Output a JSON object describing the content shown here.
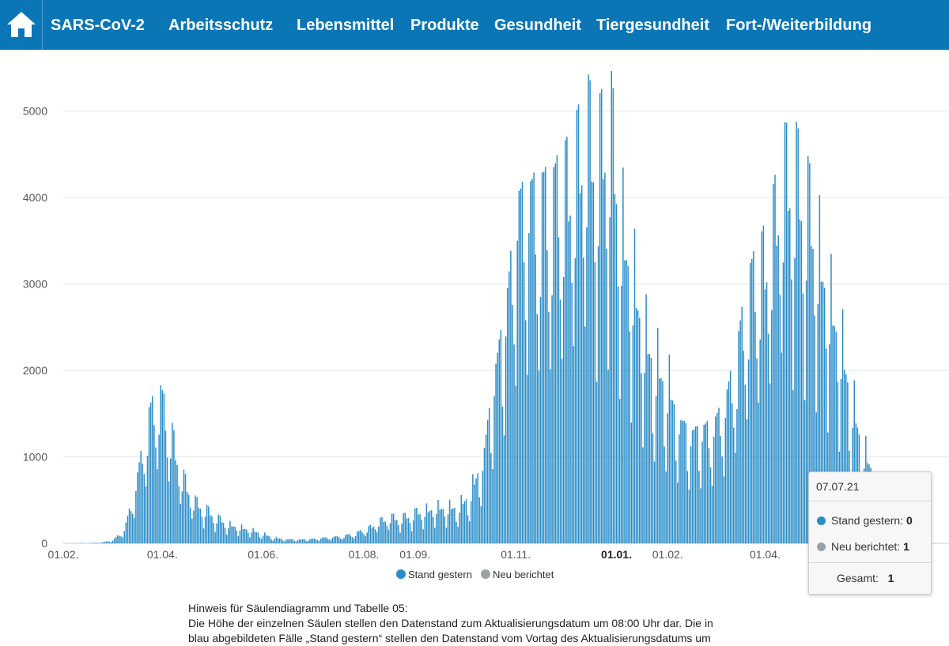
{
  "nav": {
    "home_icon": "home-icon",
    "items": [
      "SARS-CoV-2",
      "Arbeitsschutz",
      "Lebensmittel",
      "Produkte",
      "Gesundheit",
      "Tiergesundheit",
      "Fort-/Weiterbildung"
    ]
  },
  "colors": {
    "nav_bg": "#0a76b5",
    "series_stand": "#2a8dc8",
    "series_neu": "#9aa1a6",
    "grid": "#e6e6e6"
  },
  "chart_data": {
    "type": "bar",
    "x_start": "2020-02-01",
    "x_end": "2021-07-07",
    "ylim": [
      0,
      5600
    ],
    "yticks": [
      0,
      1000,
      2000,
      3000,
      4000,
      5000
    ],
    "xtick_labels": [
      {
        "date": "2020-02-01",
        "label": "01.02.",
        "bold": false
      },
      {
        "date": "2020-04-01",
        "label": "01.04.",
        "bold": false
      },
      {
        "date": "2020-06-01",
        "label": "01.06.",
        "bold": false
      },
      {
        "date": "2020-08-01",
        "label": "01.08.",
        "bold": false
      },
      {
        "date": "2020-09-01",
        "label": "01.09.",
        "bold": false
      },
      {
        "date": "2020-11-01",
        "label": "01.11.",
        "bold": false
      },
      {
        "date": "2021-01-01",
        "label": "01.01.",
        "bold": true
      },
      {
        "date": "2021-02-01",
        "label": "01.02.",
        "bold": false
      },
      {
        "date": "2021-04-01",
        "label": "01.04.",
        "bold": false
      }
    ],
    "weekly_profile": [
      0.72,
      1.0,
      0.93,
      0.88,
      0.82,
      0.6,
      0.42
    ],
    "weekly_trend": [
      {
        "week_start": "2020-02-03",
        "value": 2
      },
      {
        "week_start": "2020-02-10",
        "value": 3
      },
      {
        "week_start": "2020-02-17",
        "value": 5
      },
      {
        "week_start": "2020-02-24",
        "value": 10
      },
      {
        "week_start": "2020-03-02",
        "value": 40
      },
      {
        "week_start": "2020-03-09",
        "value": 180
      },
      {
        "week_start": "2020-03-16",
        "value": 750
      },
      {
        "week_start": "2020-03-23",
        "value": 1600
      },
      {
        "week_start": "2020-03-30",
        "value": 1950
      },
      {
        "week_start": "2020-04-06",
        "value": 1500
      },
      {
        "week_start": "2020-04-13",
        "value": 900
      },
      {
        "week_start": "2020-04-20",
        "value": 560
      },
      {
        "week_start": "2020-04-27",
        "value": 450
      },
      {
        "week_start": "2020-05-04",
        "value": 330
      },
      {
        "week_start": "2020-05-11",
        "value": 250
      },
      {
        "week_start": "2020-05-18",
        "value": 210
      },
      {
        "week_start": "2020-05-25",
        "value": 170
      },
      {
        "week_start": "2020-06-01",
        "value": 120
      },
      {
        "week_start": "2020-06-08",
        "value": 70
      },
      {
        "week_start": "2020-06-15",
        "value": 55
      },
      {
        "week_start": "2020-06-22",
        "value": 50
      },
      {
        "week_start": "2020-06-29",
        "value": 55
      },
      {
        "week_start": "2020-07-06",
        "value": 70
      },
      {
        "week_start": "2020-07-13",
        "value": 80
      },
      {
        "week_start": "2020-07-20",
        "value": 100
      },
      {
        "week_start": "2020-07-27",
        "value": 130
      },
      {
        "week_start": "2020-08-03",
        "value": 190
      },
      {
        "week_start": "2020-08-10",
        "value": 290
      },
      {
        "week_start": "2020-08-17",
        "value": 340
      },
      {
        "week_start": "2020-08-24",
        "value": 330
      },
      {
        "week_start": "2020-08-31",
        "value": 380
      },
      {
        "week_start": "2020-09-07",
        "value": 430
      },
      {
        "week_start": "2020-09-14",
        "value": 470
      },
      {
        "week_start": "2020-09-21",
        "value": 460
      },
      {
        "week_start": "2020-09-28",
        "value": 480
      },
      {
        "week_start": "2020-10-05",
        "value": 650
      },
      {
        "week_start": "2020-10-12",
        "value": 1100
      },
      {
        "week_start": "2020-10-19",
        "value": 2200
      },
      {
        "week_start": "2020-10-26",
        "value": 3050
      },
      {
        "week_start": "2020-11-02",
        "value": 4400
      },
      {
        "week_start": "2020-11-09",
        "value": 4450
      },
      {
        "week_start": "2020-11-16",
        "value": 4500
      },
      {
        "week_start": "2020-11-23",
        "value": 4450
      },
      {
        "week_start": "2020-11-30",
        "value": 4700
      },
      {
        "week_start": "2020-12-07",
        "value": 4950
      },
      {
        "week_start": "2020-12-14",
        "value": 5400
      },
      {
        "week_start": "2020-12-21",
        "value": 5000
      },
      {
        "week_start": "2020-12-28",
        "value": 5400
      },
      {
        "week_start": "2021-01-04",
        "value": 4200
      },
      {
        "week_start": "2021-01-11",
        "value": 3500
      },
      {
        "week_start": "2021-01-18",
        "value": 2700
      },
      {
        "week_start": "2021-01-25",
        "value": 2300
      },
      {
        "week_start": "2021-02-01",
        "value": 2000
      },
      {
        "week_start": "2021-02-08",
        "value": 1650
      },
      {
        "week_start": "2021-02-15",
        "value": 1450
      },
      {
        "week_start": "2021-02-22",
        "value": 1500
      },
      {
        "week_start": "2021-03-01",
        "value": 1550
      },
      {
        "week_start": "2021-03-08",
        "value": 1800
      },
      {
        "week_start": "2021-03-15",
        "value": 2450
      },
      {
        "week_start": "2021-03-22",
        "value": 3300
      },
      {
        "week_start": "2021-03-29",
        "value": 3600
      },
      {
        "week_start": "2021-04-05",
        "value": 4050
      },
      {
        "week_start": "2021-04-12",
        "value": 4800
      },
      {
        "week_start": "2021-04-19",
        "value": 4800
      },
      {
        "week_start": "2021-04-26",
        "value": 4350
      },
      {
        "week_start": "2021-05-03",
        "value": 3900
      },
      {
        "week_start": "2021-05-10",
        "value": 3200
      },
      {
        "week_start": "2021-05-17",
        "value": 2600
      },
      {
        "week_start": "2021-05-24",
        "value": 1800
      },
      {
        "week_start": "2021-05-31",
        "value": 1150
      },
      {
        "week_start": "2021-06-07",
        "value": 850
      },
      {
        "week_start": "2021-06-14",
        "value": 500
      },
      {
        "week_start": "2021-06-21",
        "value": 300
      },
      {
        "week_start": "2021-06-28",
        "value": 150
      },
      {
        "week_start": "2021-07-05",
        "value": 60
      }
    ],
    "series": [
      {
        "name": "Stand gestern",
        "color": "#2a8dc8"
      },
      {
        "name": "Neu berichtet",
        "color": "#9aa1a6"
      }
    ],
    "legend_position": "bottom"
  },
  "tooltip": {
    "date": "07.07.21",
    "rows": [
      {
        "label": "Stand gestern:",
        "value": "0"
      },
      {
        "label": "Neu berichtet:",
        "value": "1"
      }
    ],
    "total_label": "Gesamt:",
    "total_value": "1"
  },
  "note": {
    "title": "Hinweis für Säulendiagramm und Tabelle 05:",
    "line1": "Die Höhe der einzelnen Säulen stellen den Datenstand zum Aktualisierungsdatum um 08:00 Uhr dar. Die in",
    "line2": "blau abgebildeten Fälle „Stand gestern“ stellen den Datenstand vom Vortag des Aktualisierungsdatums um"
  }
}
